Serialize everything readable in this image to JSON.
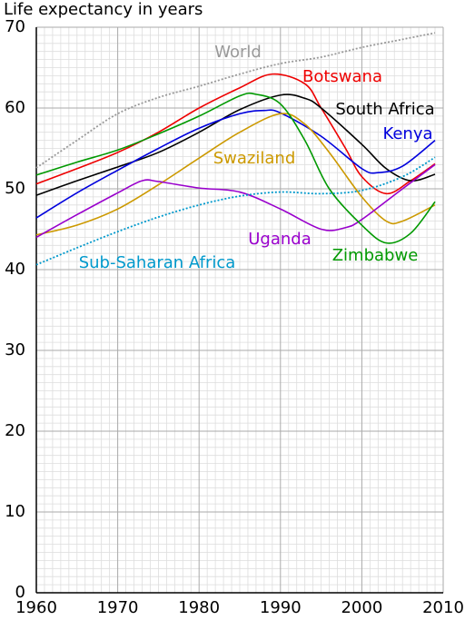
{
  "chart_data": {
    "type": "line",
    "title": "Life expectancy in years",
    "xlim": [
      1960,
      2010
    ],
    "xticks": [
      1960,
      1970,
      1980,
      1990,
      2000,
      2010
    ],
    "ylim": [
      0,
      70
    ],
    "yticks": [
      0,
      10,
      20,
      30,
      40,
      50,
      60,
      70
    ],
    "grid": true,
    "minor_grid": true,
    "series": [
      {
        "name": "World",
        "color": "#999999",
        "style": "dotted",
        "x": [
          1960,
          1965,
          1970,
          1975,
          1980,
          1985,
          1990,
          1995,
          2000,
          2005,
          2009
        ],
        "values": [
          52.6,
          56,
          59.3,
          61.3,
          62.7,
          64.2,
          65.5,
          66.3,
          67.5,
          68.5,
          69.3
        ]
      },
      {
        "name": "Botswana",
        "color": "#ee0000",
        "style": "solid",
        "x": [
          1960,
          1965,
          1970,
          1975,
          1980,
          1985,
          1989,
          1993,
          1995,
          1998,
          2000,
          2003,
          2006,
          2009
        ],
        "values": [
          50.6,
          52.5,
          54.5,
          57,
          60,
          62.5,
          64.2,
          63,
          60,
          55,
          51.5,
          49.4,
          51,
          53.1
        ]
      },
      {
        "name": "South Africa",
        "color": "#000000",
        "style": "solid",
        "x": [
          1960,
          1965,
          1970,
          1975,
          1980,
          1985,
          1990,
          1993,
          1995,
          2000,
          2003,
          2006,
          2009
        ],
        "values": [
          49.2,
          51,
          52.7,
          54.5,
          57,
          59.8,
          61.6,
          61.2,
          60,
          55.5,
          52.5,
          51,
          51.8
        ]
      },
      {
        "name": "Kenya",
        "color": "#0000dd",
        "style": "solid",
        "x": [
          1960,
          1965,
          1970,
          1975,
          1980,
          1985,
          1988,
          1990,
          1995,
          2000,
          2002,
          2005,
          2009
        ],
        "values": [
          46.4,
          49.5,
          52.3,
          55,
          57.5,
          59.3,
          59.7,
          59.4,
          56.5,
          52.5,
          52,
          52.8,
          56
        ]
      },
      {
        "name": "Swaziland",
        "color": "#cc9900",
        "style": "solid",
        "x": [
          1960,
          1965,
          1970,
          1975,
          1980,
          1985,
          1990,
          1993,
          1996,
          2000,
          2003,
          2005,
          2009
        ],
        "values": [
          44.3,
          45.5,
          47.5,
          50.5,
          53.8,
          57,
          59.3,
          58,
          54.5,
          49,
          46,
          46,
          48
        ]
      },
      {
        "name": "Uganda",
        "color": "#9900cc",
        "style": "solid",
        "x": [
          1960,
          1965,
          1970,
          1973,
          1975,
          1980,
          1985,
          1990,
          1995,
          1998,
          2000,
          2005,
          2009
        ],
        "values": [
          44,
          46.8,
          49.5,
          51,
          50.9,
          50.1,
          49.6,
          47.5,
          45,
          45.2,
          46.2,
          50,
          53
        ]
      },
      {
        "name": "Zimbabwe",
        "color": "#009900",
        "style": "solid",
        "x": [
          1960,
          1965,
          1970,
          1975,
          1980,
          1985,
          1987,
          1990,
          1993,
          1996,
          2000,
          2003,
          2006,
          2009
        ],
        "values": [
          51.7,
          53.3,
          54.8,
          56.8,
          59,
          61.5,
          61.7,
          60.5,
          56,
          50,
          45.5,
          43.3,
          44.5,
          48.4
        ]
      },
      {
        "name": "Sub-Saharan Africa",
        "color": "#0099cc",
        "style": "dotted",
        "x": [
          1960,
          1965,
          1970,
          1975,
          1980,
          1985,
          1990,
          1995,
          2000,
          2005,
          2009
        ],
        "values": [
          40.6,
          42.7,
          44.7,
          46.5,
          48,
          49.1,
          49.6,
          49.4,
          49.8,
          51.5,
          53.9
        ]
      }
    ]
  }
}
